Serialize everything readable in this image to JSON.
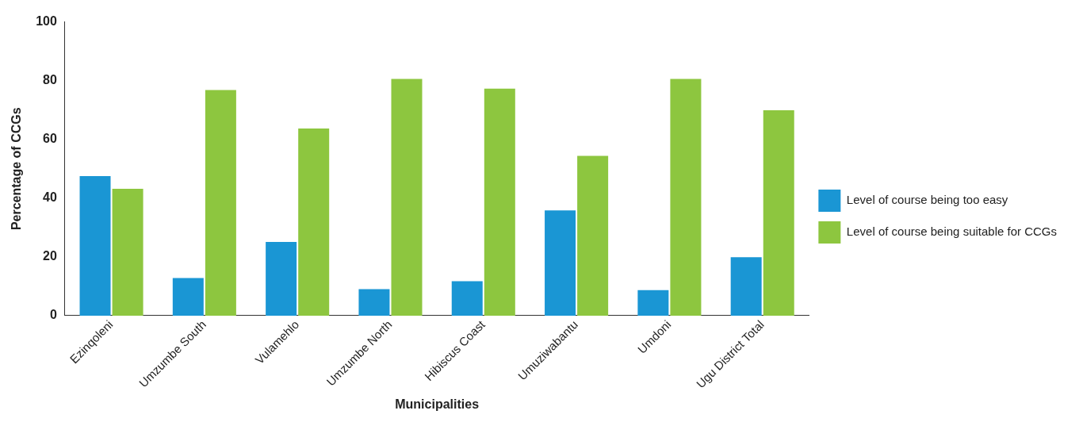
{
  "chart_data": {
    "type": "bar",
    "xlabel": "Municipalities",
    "ylabel": "Percentage of CCGs",
    "categories": [
      "Ezinqoleni",
      "Umzumbe South",
      "Vulamehlo",
      "Umzumbe North",
      "Hibiscus Coast",
      "Umuziwabantu",
      "Umdoni",
      "Ugu District Total"
    ],
    "series": [
      {
        "name": "Level of course being too easy",
        "color": "#1a96d4",
        "values": [
          47.5,
          12.8,
          25.1,
          9.0,
          11.7,
          35.8,
          8.7,
          19.9
        ]
      },
      {
        "name": "Level of course being suitable for CCGs",
        "color": "#8dc63f",
        "values": [
          43.2,
          76.8,
          63.7,
          80.6,
          77.3,
          54.4,
          80.6,
          69.9
        ]
      }
    ],
    "ylim": [
      0,
      100
    ],
    "yticks": [
      0,
      20,
      40,
      60,
      80,
      100
    ],
    "grid": false,
    "legend": "right"
  }
}
